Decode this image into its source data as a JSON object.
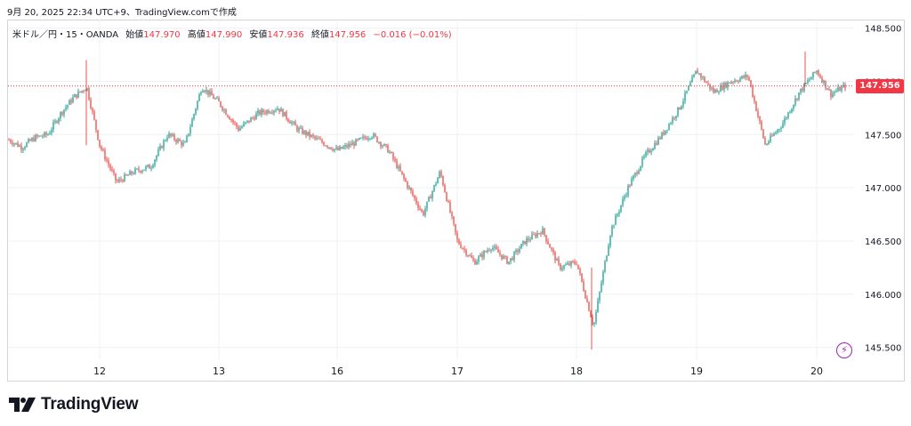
{
  "header": {
    "caption": "9月 20, 2025 22:34 UTC+9、TradingView.comで作成"
  },
  "legend": {
    "symbol": "米ドル／円・15・OANDA",
    "open_label": "始値",
    "open_value": "147.970",
    "high_label": "高値",
    "high_value": "147.990",
    "low_label": "安値",
    "low_value": "147.936",
    "close_label": "終値",
    "close_value": "147.956",
    "change": "−0.016 (−0.01%)"
  },
  "last_price_tag": "147.956",
  "brand": {
    "name": "TradingView"
  },
  "colors": {
    "up": "#26a69a",
    "down": "#ef5350",
    "accent": "#f23645",
    "grid": "#eef0f3",
    "text": "#131722",
    "bolt": "#9c27b0"
  },
  "icons": {
    "bolt": "lightning-bolt-icon",
    "logo": "tradingview-logo-icon"
  },
  "chart_data": {
    "type": "candlestick",
    "pair": "USD/JPY",
    "interval": "15",
    "source": "OANDA",
    "ylim": [
      145.38,
      148.58
    ],
    "y_ticks": [
      "148.500",
      "148.000",
      "147.500",
      "147.000",
      "146.500",
      "146.000",
      "145.500"
    ],
    "x_ticks": [
      "12",
      "13",
      "16",
      "17",
      "18",
      "19",
      "20"
    ],
    "last_price": 147.956,
    "grid": true,
    "price_path": [
      [
        "start",
        147.45
      ],
      [
        "",
        147.38
      ],
      [
        "",
        147.47
      ],
      [
        "",
        147.5
      ],
      [
        "",
        147.7
      ],
      [
        "",
        147.85
      ],
      [
        "",
        147.95
      ],
      [
        "12",
        147.4
      ],
      [
        "",
        147.05
      ],
      [
        "",
        147.15
      ],
      [
        "",
        147.2
      ],
      [
        "",
        147.5
      ],
      [
        "",
        147.4
      ],
      [
        "",
        147.95
      ],
      [
        "13",
        147.8
      ],
      [
        "",
        147.55
      ],
      [
        "",
        147.7
      ],
      [
        "",
        147.75
      ],
      [
        "",
        147.55
      ],
      [
        "",
        147.45
      ],
      [
        "16",
        147.35
      ],
      [
        "",
        147.42
      ],
      [
        "",
        147.5
      ],
      [
        "",
        147.35
      ],
      [
        "",
        147.05
      ],
      [
        "",
        146.75
      ],
      [
        "",
        147.15
      ],
      [
        "17",
        146.5
      ],
      [
        "",
        146.3
      ],
      [
        "",
        146.45
      ],
      [
        "",
        146.3
      ],
      [
        "",
        146.5
      ],
      [
        "",
        146.6
      ],
      [
        "",
        146.25
      ],
      [
        "18",
        146.3
      ],
      [
        "",
        145.7
      ],
      [
        "",
        146.6
      ],
      [
        "",
        147.0
      ],
      [
        "",
        147.3
      ],
      [
        "",
        147.5
      ],
      [
        "",
        147.75
      ],
      [
        "19",
        148.1
      ],
      [
        "",
        147.9
      ],
      [
        "",
        148.0
      ],
      [
        "",
        148.05
      ],
      [
        "",
        147.4
      ],
      [
        "",
        147.6
      ],
      [
        "",
        147.9
      ],
      [
        "20",
        148.1
      ],
      [
        "",
        147.88
      ],
      [
        "end",
        147.956
      ]
    ]
  }
}
